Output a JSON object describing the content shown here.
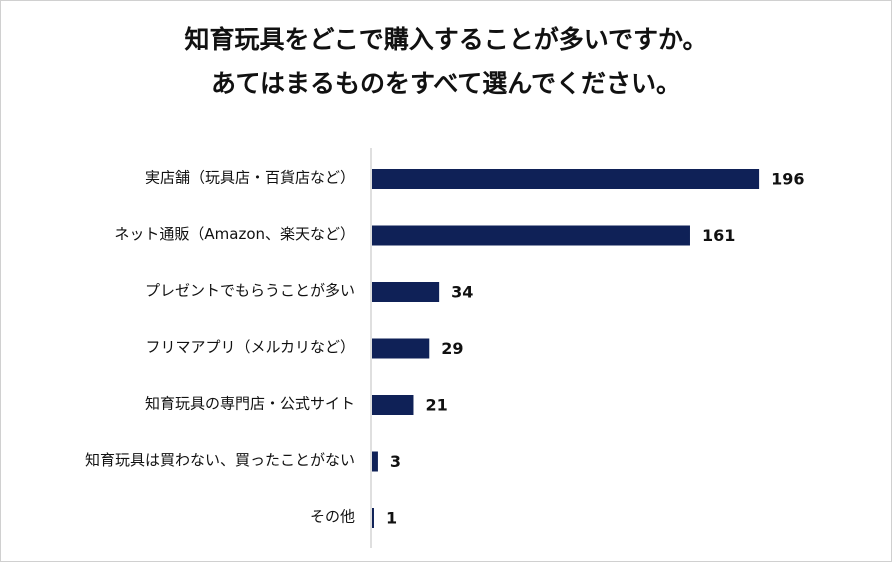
{
  "chart_data": {
    "type": "bar",
    "orientation": "horizontal",
    "title_lines": [
      "知育玩具をどこで購入することが多いですか。",
      "あてはまるものをすべて選んでください。"
    ],
    "categories": [
      "実店舗（玩具店・百貨店など）",
      "ネット通販（Amazon、楽天など）",
      "プレゼントでもらうことが多い",
      "フリマアプリ（メルカリなど）",
      "知育玩具の専門店・公式サイト",
      "知育玩具は買わない、買ったことがない",
      "その他"
    ],
    "values": [
      196,
      161,
      34,
      29,
      21,
      3,
      1
    ],
    "xlim": [
      0,
      200
    ],
    "bar_color": "#0f2157",
    "grid": false,
    "legend": "none"
  }
}
